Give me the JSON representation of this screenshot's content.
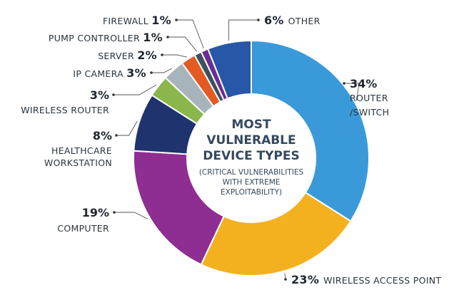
{
  "chart_data": {
    "type": "pie",
    "donut": true,
    "title": [
      "MOST",
      "VULNERABLE",
      "DEVICE TYPES"
    ],
    "subtitle": [
      "(CRITICAL VULNERABILITIES",
      "WITH EXTREME",
      "EXPLOITABILITY)"
    ],
    "start": "12 o'clock, clockwise",
    "slices": [
      {
        "label": "ROUTER /SWITCH",
        "label_lines": [
          "ROUTER",
          "/SWITCH"
        ],
        "value": 34,
        "pct": "34%",
        "color": "#3a9ad9"
      },
      {
        "label": "WIRELESS ACCESS POINT",
        "label_lines": [
          "WIRELESS ACCESS POINT"
        ],
        "value": 23,
        "pct": "23%",
        "color": "#f4b11f"
      },
      {
        "label": "COMPUTER",
        "label_lines": [
          "COMPUTER"
        ],
        "value": 19,
        "pct": "19%",
        "color": "#8e2d92"
      },
      {
        "label": "HEALTHCARE WORKSTATION",
        "label_lines": [
          "HEALTHCARE",
          "WORKSTATION"
        ],
        "value": 8,
        "pct": "8%",
        "color": "#1f336f"
      },
      {
        "label": "WIRELESS ROUTER",
        "label_lines": [
          "WIRELESS ROUTER"
        ],
        "value": 3,
        "pct": "3%",
        "color": "#8ab64b"
      },
      {
        "label": "IP CAMERA",
        "label_lines": [
          "IP CAMERA"
        ],
        "value": 3,
        "pct": "3%",
        "color": "#a8b4bc"
      },
      {
        "label": "SERVER",
        "label_lines": [
          "SERVER"
        ],
        "value": 2,
        "pct": "2%",
        "color": "#e35b23"
      },
      {
        "label": "PUMP CONTROLLER",
        "label_lines": [
          "PUMP CONTROLLER"
        ],
        "value": 1,
        "pct": "1%",
        "color": "#3e505d"
      },
      {
        "label": "FIREWALL",
        "label_lines": [
          "FIREWALL"
        ],
        "value": 1,
        "pct": "1%",
        "color": "#6a2e93"
      },
      {
        "label": "OTHER",
        "label_lines": [
          "OTHER"
        ],
        "value": 6,
        "pct": "6%",
        "color": "#2857a7"
      }
    ]
  }
}
